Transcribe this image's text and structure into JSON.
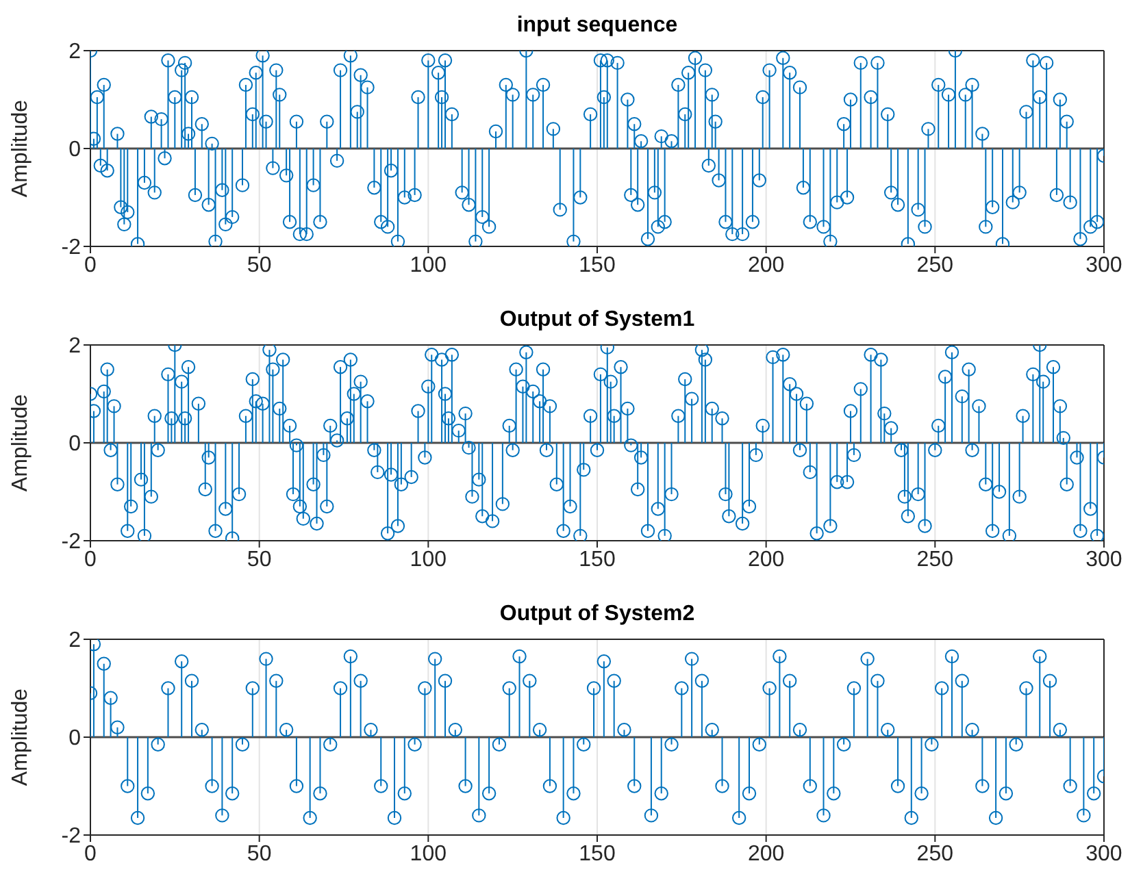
{
  "chart_data": [
    {
      "type": "lollipop",
      "title": "input sequence",
      "ylabel": "Amplitude",
      "color": "#0072bd",
      "marker": "circle",
      "grid": "x",
      "xlim": [
        0,
        300
      ],
      "xticks": [
        0,
        50,
        100,
        150,
        200,
        250,
        300
      ],
      "ylim": [
        -2,
        2
      ],
      "yticks": [
        -2,
        0,
        2
      ],
      "x": [
        0,
        1,
        2,
        3,
        4,
        5,
        8,
        9,
        10,
        11,
        14,
        16,
        18,
        19,
        21,
        22,
        23,
        25,
        27,
        28,
        29,
        30,
        31,
        33,
        35,
        36,
        37,
        39,
        40,
        42,
        45,
        46,
        48,
        49,
        51,
        52,
        54,
        55,
        56,
        58,
        59,
        61,
        62,
        64,
        66,
        68,
        70,
        73,
        74,
        77,
        79,
        80,
        82,
        84,
        86,
        88,
        89,
        91,
        93,
        96,
        97,
        100,
        103,
        104,
        105,
        107,
        110,
        112,
        114,
        116,
        118,
        120,
        123,
        125,
        129,
        131,
        134,
        137,
        139,
        143,
        145,
        148,
        151,
        152,
        153,
        156,
        159,
        160,
        161,
        162,
        163,
        165,
        167,
        168,
        169,
        170,
        172,
        174,
        176,
        177,
        179,
        182,
        183,
        184,
        185,
        186,
        188,
        190,
        193,
        196,
        198,
        199,
        201,
        205,
        207,
        210,
        211,
        213,
        217,
        219,
        221,
        223,
        224,
        225,
        228,
        231,
        233,
        236,
        237,
        239,
        242,
        245,
        247,
        248,
        251,
        254,
        256,
        259,
        261,
        264,
        265,
        267,
        270,
        273,
        275,
        277,
        279,
        281,
        283,
        286,
        287,
        289,
        290,
        293,
        296,
        298,
        300
      ],
      "values": [
        2.0,
        0.2,
        1.05,
        -0.35,
        1.3,
        -0.45,
        0.3,
        -1.2,
        -1.55,
        -1.3,
        -1.95,
        -0.7,
        0.65,
        -0.9,
        0.6,
        -0.2,
        1.8,
        1.05,
        1.6,
        1.75,
        0.3,
        1.05,
        -0.95,
        0.5,
        -1.15,
        0.1,
        -1.9,
        -0.85,
        -1.55,
        -1.4,
        -0.75,
        1.3,
        0.7,
        1.55,
        1.9,
        0.55,
        -0.4,
        1.6,
        1.1,
        -0.55,
        -1.5,
        0.55,
        -1.75,
        -1.75,
        -0.75,
        -1.5,
        0.55,
        -0.25,
        1.6,
        1.9,
        0.75,
        1.5,
        1.25,
        -0.8,
        -1.5,
        -1.6,
        -0.45,
        -1.9,
        -1.0,
        -0.95,
        1.05,
        1.8,
        1.55,
        1.05,
        1.8,
        0.7,
        -0.9,
        -1.15,
        -1.9,
        -1.4,
        -1.6,
        0.35,
        1.3,
        1.1,
        2.0,
        1.1,
        1.3,
        0.4,
        -1.25,
        -1.9,
        -1.0,
        0.7,
        1.8,
        1.05,
        1.8,
        1.75,
        1.0,
        -0.95,
        0.5,
        -1.15,
        0.15,
        -1.85,
        -0.9,
        -1.6,
        0.25,
        -1.5,
        0.15,
        1.3,
        0.7,
        1.55,
        1.85,
        1.6,
        -0.35,
        1.1,
        0.55,
        -0.65,
        -1.5,
        -1.75,
        -1.75,
        -1.5,
        -0.65,
        1.05,
        1.6,
        1.85,
        1.55,
        1.25,
        -0.8,
        -1.5,
        -1.6,
        -1.9,
        -1.1,
        0.5,
        -1.0,
        1.0,
        1.75,
        1.05,
        1.75,
        0.7,
        -0.9,
        -1.15,
        -1.95,
        -1.25,
        -1.6,
        0.4,
        1.3,
        1.1,
        2.0,
        1.1,
        1.3,
        0.3,
        -1.6,
        -1.2,
        -1.95,
        -1.1,
        -0.9,
        0.75,
        1.8,
        1.05,
        1.75,
        -0.95,
        1.0,
        0.55,
        -1.1,
        -1.85,
        -1.6,
        -1.5,
        -0.15
      ]
    },
    {
      "type": "lollipop",
      "title": "Output of System1",
      "ylabel": "Amplitude",
      "color": "#0072bd",
      "marker": "circle",
      "grid": "x",
      "xlim": [
        0,
        300
      ],
      "xticks": [
        0,
        50,
        100,
        150,
        200,
        250,
        300
      ],
      "ylim": [
        -2,
        2
      ],
      "yticks": [
        -2,
        0,
        2
      ],
      "x": [
        0,
        1,
        4,
        5,
        6,
        7,
        8,
        11,
        12,
        15,
        16,
        18,
        19,
        20,
        23,
        24,
        25,
        27,
        28,
        29,
        32,
        34,
        35,
        37,
        40,
        42,
        44,
        46,
        48,
        49,
        51,
        53,
        54,
        56,
        57,
        59,
        60,
        61,
        62,
        63,
        66,
        67,
        69,
        70,
        71,
        73,
        74,
        76,
        77,
        78,
        80,
        82,
        84,
        85,
        88,
        89,
        91,
        92,
        95,
        97,
        99,
        100,
        101,
        104,
        105,
        106,
        107,
        109,
        111,
        112,
        113,
        115,
        116,
        119,
        122,
        124,
        125,
        126,
        128,
        129,
        131,
        133,
        134,
        135,
        136,
        138,
        140,
        142,
        145,
        146,
        148,
        150,
        151,
        153,
        154,
        155,
        157,
        159,
        160,
        162,
        163,
        165,
        168,
        170,
        172,
        174,
        176,
        178,
        181,
        182,
        184,
        187,
        188,
        189,
        193,
        195,
        197,
        199,
        202,
        205,
        207,
        209,
        210,
        212,
        213,
        215,
        219,
        221,
        224,
        225,
        226,
        228,
        231,
        234,
        235,
        237,
        240,
        241,
        242,
        245,
        247,
        250,
        251,
        253,
        255,
        258,
        260,
        261,
        263,
        265,
        267,
        269,
        272,
        275,
        276,
        279,
        281,
        282,
        285,
        287,
        288,
        289,
        292,
        293,
        296,
        298,
        300
      ],
      "values": [
        1.0,
        0.65,
        1.05,
        1.5,
        -0.15,
        0.75,
        -0.85,
        -1.8,
        -1.3,
        -0.75,
        -1.9,
        -1.1,
        0.55,
        -0.15,
        1.4,
        0.5,
        2.0,
        1.25,
        0.5,
        1.55,
        0.8,
        -0.95,
        -0.3,
        -1.8,
        -1.35,
        -1.95,
        -1.05,
        0.55,
        1.3,
        0.85,
        0.8,
        1.9,
        1.5,
        0.7,
        1.7,
        0.35,
        -1.05,
        -0.05,
        -1.3,
        -1.55,
        -0.85,
        -1.65,
        -0.25,
        -1.3,
        0.35,
        0.05,
        1.55,
        0.5,
        1.7,
        1.0,
        1.25,
        0.85,
        -0.15,
        -0.6,
        -1.85,
        -0.65,
        -1.7,
        -0.85,
        -0.7,
        0.65,
        -0.3,
        1.15,
        1.8,
        1.7,
        1.0,
        0.5,
        1.8,
        0.25,
        0.6,
        -0.1,
        -1.1,
        -0.75,
        -1.5,
        -1.6,
        -1.25,
        0.35,
        -0.15,
        1.5,
        1.15,
        1.85,
        1.05,
        0.85,
        1.5,
        -0.15,
        0.75,
        -0.85,
        -1.8,
        -1.3,
        -1.9,
        -0.55,
        0.55,
        -0.15,
        1.4,
        1.95,
        1.25,
        0.55,
        1.55,
        0.7,
        -0.05,
        -0.95,
        -0.3,
        -1.8,
        -1.35,
        -1.9,
        -1.05,
        0.55,
        1.3,
        0.9,
        1.9,
        1.7,
        0.7,
        0.5,
        -1.05,
        -1.5,
        -1.65,
        -1.3,
        -0.25,
        0.35,
        1.75,
        1.8,
        1.2,
        1.0,
        -0.15,
        0.8,
        -0.6,
        -1.85,
        -1.7,
        -0.8,
        -0.8,
        0.65,
        -0.25,
        1.1,
        1.8,
        1.7,
        0.6,
        0.3,
        -0.15,
        -1.1,
        -1.5,
        -1.05,
        -1.7,
        -0.15,
        0.35,
        1.35,
        1.85,
        0.95,
        1.5,
        -0.15,
        0.75,
        -0.85,
        -1.8,
        -1.0,
        -1.9,
        -1.1,
        0.55,
        1.4,
        2.0,
        1.25,
        1.55,
        0.75,
        0.1,
        -0.85,
        -0.3,
        -1.8,
        -1.35,
        -1.9,
        -0.3
      ]
    },
    {
      "type": "lollipop",
      "title": "Output of System2",
      "ylabel": "Amplitude",
      "color": "#0072bd",
      "marker": "circle",
      "grid": "x",
      "xlim": [
        0,
        300
      ],
      "xticks": [
        0,
        50,
        100,
        150,
        200,
        250,
        300
      ],
      "ylim": [
        -2,
        2
      ],
      "yticks": [
        -2,
        0,
        2
      ],
      "x": [
        0,
        1,
        4,
        6,
        8,
        11,
        14,
        17,
        20,
        23,
        27,
        30,
        33,
        36,
        39,
        42,
        45,
        48,
        52,
        55,
        58,
        61,
        65,
        68,
        71,
        74,
        77,
        80,
        83,
        86,
        90,
        93,
        96,
        99,
        102,
        105,
        108,
        111,
        115,
        118,
        121,
        124,
        127,
        130,
        133,
        136,
        140,
        143,
        146,
        149,
        152,
        155,
        158,
        161,
        166,
        169,
        172,
        175,
        178,
        181,
        184,
        187,
        192,
        195,
        198,
        201,
        204,
        207,
        210,
        213,
        217,
        220,
        223,
        226,
        230,
        233,
        236,
        239,
        243,
        246,
        249,
        252,
        255,
        258,
        261,
        264,
        268,
        271,
        274,
        277,
        281,
        284,
        287,
        290,
        294,
        297,
        300
      ],
      "values": [
        0.9,
        1.9,
        1.5,
        0.8,
        0.2,
        -1.0,
        -1.65,
        -1.15,
        -0.15,
        1.0,
        1.55,
        1.15,
        0.15,
        -1.0,
        -1.6,
        -1.15,
        -0.15,
        1.0,
        1.6,
        1.15,
        0.15,
        -1.0,
        -1.65,
        -1.15,
        -0.15,
        1.0,
        1.65,
        1.15,
        0.15,
        -1.0,
        -1.65,
        -1.15,
        -0.15,
        1.0,
        1.6,
        1.15,
        0.15,
        -1.0,
        -1.6,
        -1.15,
        -0.15,
        1.0,
        1.65,
        1.15,
        0.15,
        -1.0,
        -1.65,
        -1.15,
        -0.15,
        1.0,
        1.55,
        1.15,
        0.15,
        -1.0,
        -1.6,
        -1.15,
        -0.15,
        1.0,
        1.6,
        1.15,
        0.15,
        -1.0,
        -1.65,
        -1.15,
        -0.15,
        1.0,
        1.65,
        1.15,
        0.15,
        -1.0,
        -1.6,
        -1.15,
        -0.15,
        1.0,
        1.6,
        1.15,
        0.15,
        -1.0,
        -1.65,
        -1.15,
        -0.15,
        1.0,
        1.65,
        1.15,
        0.15,
        -1.0,
        -1.65,
        -1.15,
        -0.15,
        1.0,
        1.65,
        1.15,
        0.15,
        -1.0,
        -1.6,
        -1.15,
        -0.8
      ]
    }
  ]
}
